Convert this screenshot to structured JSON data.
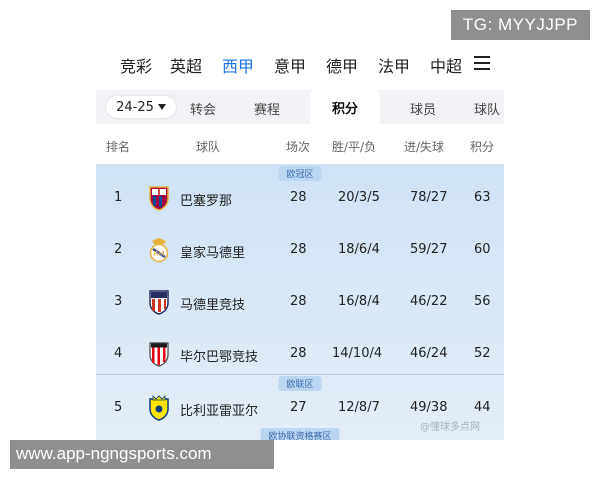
{
  "watermarks": {
    "top": "TG: MYYJJPP",
    "bottom": "www.app-ngngsports.com"
  },
  "league_nav": {
    "tabs": [
      "竞彩",
      "英超",
      "西甲",
      "意甲",
      "德甲",
      "法甲",
      "中超"
    ],
    "active_index": 2,
    "active_color": "#1a73e8"
  },
  "sub_nav": {
    "season": "24-25",
    "tabs": [
      "转会",
      "赛程",
      "积分",
      "球员",
      "球队"
    ],
    "active_index": 2
  },
  "table": {
    "headers": {
      "rank": "排名",
      "team": "球队",
      "played": "场次",
      "wdl": "胜/平/负",
      "goals": "进/失球",
      "points": "积分"
    },
    "zones": {
      "champions": "欧冠区",
      "europa": "欧联区",
      "conference": "欧协联资格赛区"
    },
    "rows": [
      {
        "rank": "1",
        "team": "巴塞罗那",
        "played": "28",
        "wdl": "20/3/5",
        "goals": "78/27",
        "points": "63",
        "crest": "barcelona-crest"
      },
      {
        "rank": "2",
        "team": "皇家马德里",
        "played": "28",
        "wdl": "18/6/4",
        "goals": "59/27",
        "points": "60",
        "crest": "real-madrid-crest"
      },
      {
        "rank": "3",
        "team": "马德里竞技",
        "played": "28",
        "wdl": "16/8/4",
        "goals": "46/22",
        "points": "56",
        "crest": "atletico-crest"
      },
      {
        "rank": "4",
        "team": "毕尔巴鄂竞技",
        "played": "28",
        "wdl": "14/10/4",
        "goals": "46/24",
        "points": "52",
        "crest": "athletic-bilbao-crest"
      },
      {
        "rank": "5",
        "team": "比利亚雷亚尔",
        "played": "27",
        "wdl": "12/8/7",
        "goals": "49/38",
        "points": "44",
        "crest": "villarreal-crest"
      }
    ]
  },
  "source_mark": "@懂球多点网"
}
